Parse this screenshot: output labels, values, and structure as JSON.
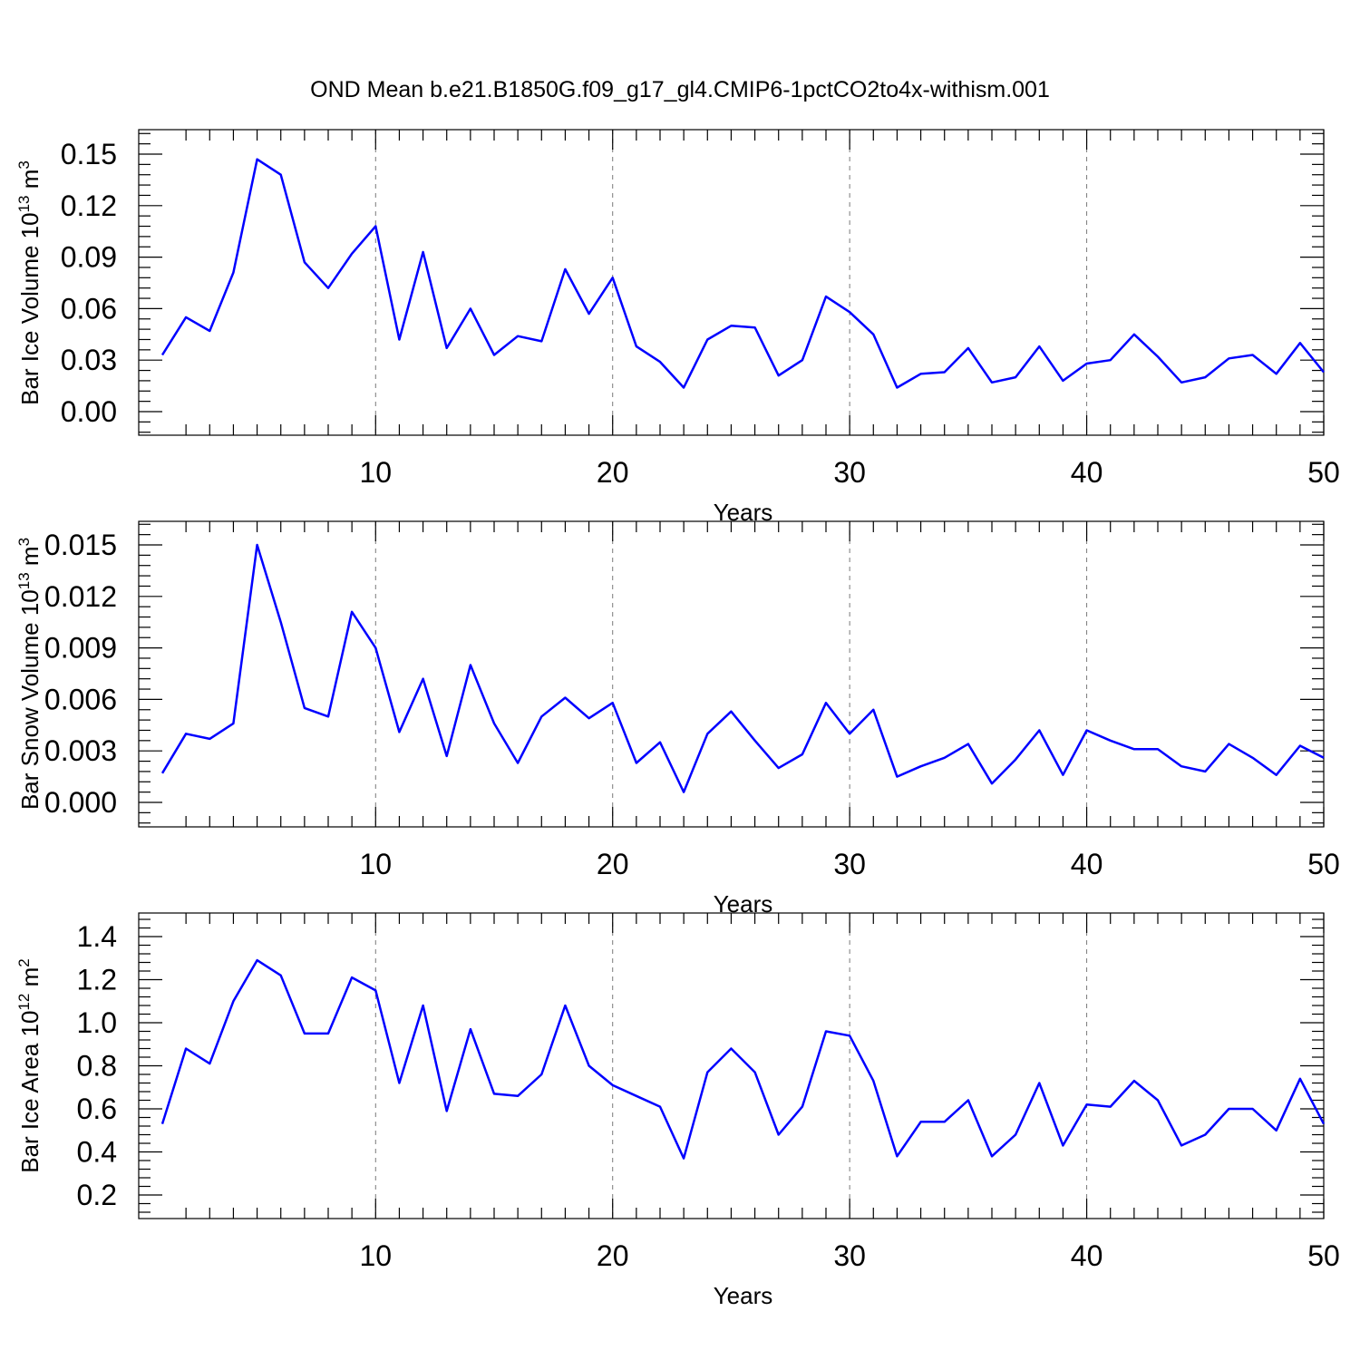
{
  "title": "OND Mean b.e21.B1850G.f09_g17_gl4.CMIP6-1pctCO2to4x-withism.001",
  "colors": {
    "series": "#0000ff",
    "grid": "#7a7a7a",
    "axes": "#000000"
  },
  "chart_data": [
    {
      "type": "line",
      "title": "",
      "xlabel": "Years",
      "ylabel_main": "Bar Ice Volume 10",
      "ylabel_exp": "13",
      "ylabel_unit": " m",
      "ylabel_unit_exp": "3",
      "xlim": [
        1,
        50
      ],
      "ylim": [
        0,
        0.15
      ],
      "xticks": [
        10,
        20,
        30,
        40,
        50
      ],
      "xtick_labels": [
        "10",
        "20",
        "30",
        "40",
        "50"
      ],
      "yticks": [
        0,
        0.03,
        0.06,
        0.09,
        0.12,
        0.15
      ],
      "ytick_labels": [
        "0.00",
        "0.03",
        "0.06",
        "0.09",
        "0.12",
        "0.15"
      ],
      "grid": "vertical dashed at major x ticks",
      "x": [
        1,
        2,
        3,
        4,
        5,
        6,
        7,
        8,
        9,
        10,
        11,
        12,
        13,
        14,
        15,
        16,
        17,
        18,
        19,
        20,
        21,
        22,
        23,
        24,
        25,
        26,
        27,
        28,
        29,
        30,
        31,
        32,
        33,
        34,
        35,
        36,
        37,
        38,
        39,
        40,
        41,
        42,
        43,
        44,
        45,
        46,
        47,
        48,
        49,
        50
      ],
      "values": [
        0.033,
        0.055,
        0.047,
        0.081,
        0.147,
        0.138,
        0.087,
        0.072,
        0.092,
        0.108,
        0.042,
        0.093,
        0.037,
        0.06,
        0.033,
        0.044,
        0.041,
        0.083,
        0.057,
        0.078,
        0.038,
        0.029,
        0.014,
        0.042,
        0.05,
        0.049,
        0.021,
        0.03,
        0.067,
        0.058,
        0.045,
        0.014,
        0.022,
        0.023,
        0.037,
        0.017,
        0.02,
        0.038,
        0.018,
        0.028,
        0.03,
        0.045,
        0.032,
        0.017,
        0.02,
        0.031,
        0.033,
        0.022,
        0.04,
        0.023
      ]
    },
    {
      "type": "line",
      "title": "",
      "xlabel": "Years",
      "ylabel_main": "Bar Snow Volume 10",
      "ylabel_exp": "13",
      "ylabel_unit": " m",
      "ylabel_unit_exp": "3",
      "xlim": [
        1,
        50
      ],
      "ylim": [
        0,
        0.015
      ],
      "xticks": [
        10,
        20,
        30,
        40,
        50
      ],
      "xtick_labels": [
        "10",
        "20",
        "30",
        "40",
        "50"
      ],
      "yticks": [
        0,
        0.003,
        0.006,
        0.009,
        0.012,
        0.015
      ],
      "ytick_labels": [
        "0.000",
        "0.003",
        "0.006",
        "0.009",
        "0.012",
        "0.015"
      ],
      "grid": "vertical dashed at major x ticks",
      "x": [
        1,
        2,
        3,
        4,
        5,
        6,
        7,
        8,
        9,
        10,
        11,
        12,
        13,
        14,
        15,
        16,
        17,
        18,
        19,
        20,
        21,
        22,
        23,
        24,
        25,
        26,
        27,
        28,
        29,
        30,
        31,
        32,
        33,
        34,
        35,
        36,
        37,
        38,
        39,
        40,
        41,
        42,
        43,
        44,
        45,
        46,
        47,
        48,
        49,
        50
      ],
      "values": [
        0.0017,
        0.004,
        0.0037,
        0.0046,
        0.015,
        0.0105,
        0.0055,
        0.005,
        0.0111,
        0.009,
        0.0041,
        0.0072,
        0.0027,
        0.008,
        0.0046,
        0.0023,
        0.005,
        0.0061,
        0.0049,
        0.0058,
        0.0023,
        0.0035,
        0.0006,
        0.004,
        0.0053,
        0.0036,
        0.002,
        0.0028,
        0.0058,
        0.004,
        0.0054,
        0.0015,
        0.0021,
        0.0026,
        0.0034,
        0.0011,
        0.0025,
        0.0042,
        0.0016,
        0.0042,
        0.0036,
        0.0031,
        0.0031,
        0.0021,
        0.0018,
        0.0034,
        0.0026,
        0.0016,
        0.0033,
        0.0026
      ]
    },
    {
      "type": "line",
      "title": "",
      "xlabel": "Years",
      "ylabel_main": "Bar Ice Area 10",
      "ylabel_exp": "12",
      "ylabel_unit": " m",
      "ylabel_unit_exp": "2",
      "xlim": [
        1,
        50
      ],
      "ylim": [
        0.2,
        1.4
      ],
      "xticks": [
        10,
        20,
        30,
        40,
        50
      ],
      "xtick_labels": [
        "10",
        "20",
        "30",
        "40",
        "50"
      ],
      "yticks": [
        0.2,
        0.4,
        0.6,
        0.8,
        1.0,
        1.2,
        1.4
      ],
      "ytick_labels": [
        "0.2",
        "0.4",
        "0.6",
        "0.8",
        "1.0",
        "1.2",
        "1.4"
      ],
      "grid": "vertical dashed at major x ticks",
      "x": [
        1,
        2,
        3,
        4,
        5,
        6,
        7,
        8,
        9,
        10,
        11,
        12,
        13,
        14,
        15,
        16,
        17,
        18,
        19,
        20,
        21,
        22,
        23,
        24,
        25,
        26,
        27,
        28,
        29,
        30,
        31,
        32,
        33,
        34,
        35,
        36,
        37,
        38,
        39,
        40,
        41,
        42,
        43,
        44,
        45,
        46,
        47,
        48,
        49,
        50
      ],
      "values": [
        0.53,
        0.88,
        0.81,
        1.1,
        1.29,
        1.22,
        0.95,
        0.95,
        1.21,
        1.15,
        0.72,
        1.08,
        0.59,
        0.97,
        0.67,
        0.66,
        0.76,
        1.08,
        0.8,
        0.71,
        0.66,
        0.61,
        0.37,
        0.77,
        0.88,
        0.77,
        0.48,
        0.61,
        0.96,
        0.94,
        0.73,
        0.38,
        0.54,
        0.54,
        0.64,
        0.38,
        0.48,
        0.72,
        0.43,
        0.62,
        0.61,
        0.73,
        0.64,
        0.43,
        0.48,
        0.6,
        0.6,
        0.5,
        0.74,
        0.53
      ]
    }
  ]
}
